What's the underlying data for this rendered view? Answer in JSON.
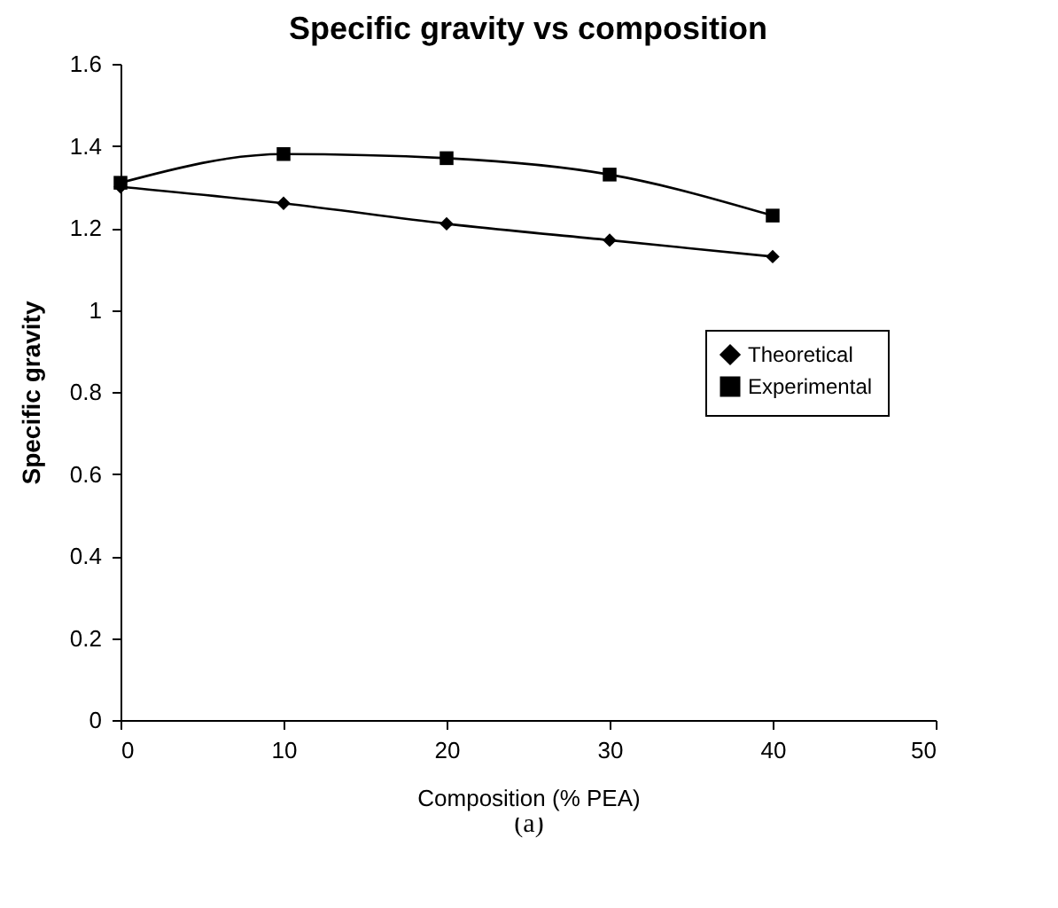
{
  "chart_data": {
    "type": "line",
    "title": "Specific gravity vs composition",
    "xlabel": "Composition (% PEA)",
    "ylabel": "Specific gravity",
    "x": [
      0,
      10,
      20,
      30,
      40
    ],
    "series": [
      {
        "name": "Theoretical",
        "color": "#000000",
        "marker": "diamond",
        "values": [
          1.3,
          1.26,
          1.21,
          1.17,
          1.13
        ]
      },
      {
        "name": "Experimental",
        "color": "#000000",
        "marker": "square",
        "values": [
          1.31,
          1.38,
          1.37,
          1.33,
          1.23
        ]
      }
    ],
    "xlim": [
      0,
      50
    ],
    "xticks": [
      0,
      10,
      20,
      30,
      40,
      50
    ],
    "ylim": [
      0,
      1.6
    ],
    "yticks": [
      0,
      0.2,
      0.4,
      0.6,
      0.8,
      1,
      1.2,
      1.4,
      1.6
    ],
    "grid": false,
    "legend": "right",
    "annotations": [
      "(a)"
    ]
  }
}
